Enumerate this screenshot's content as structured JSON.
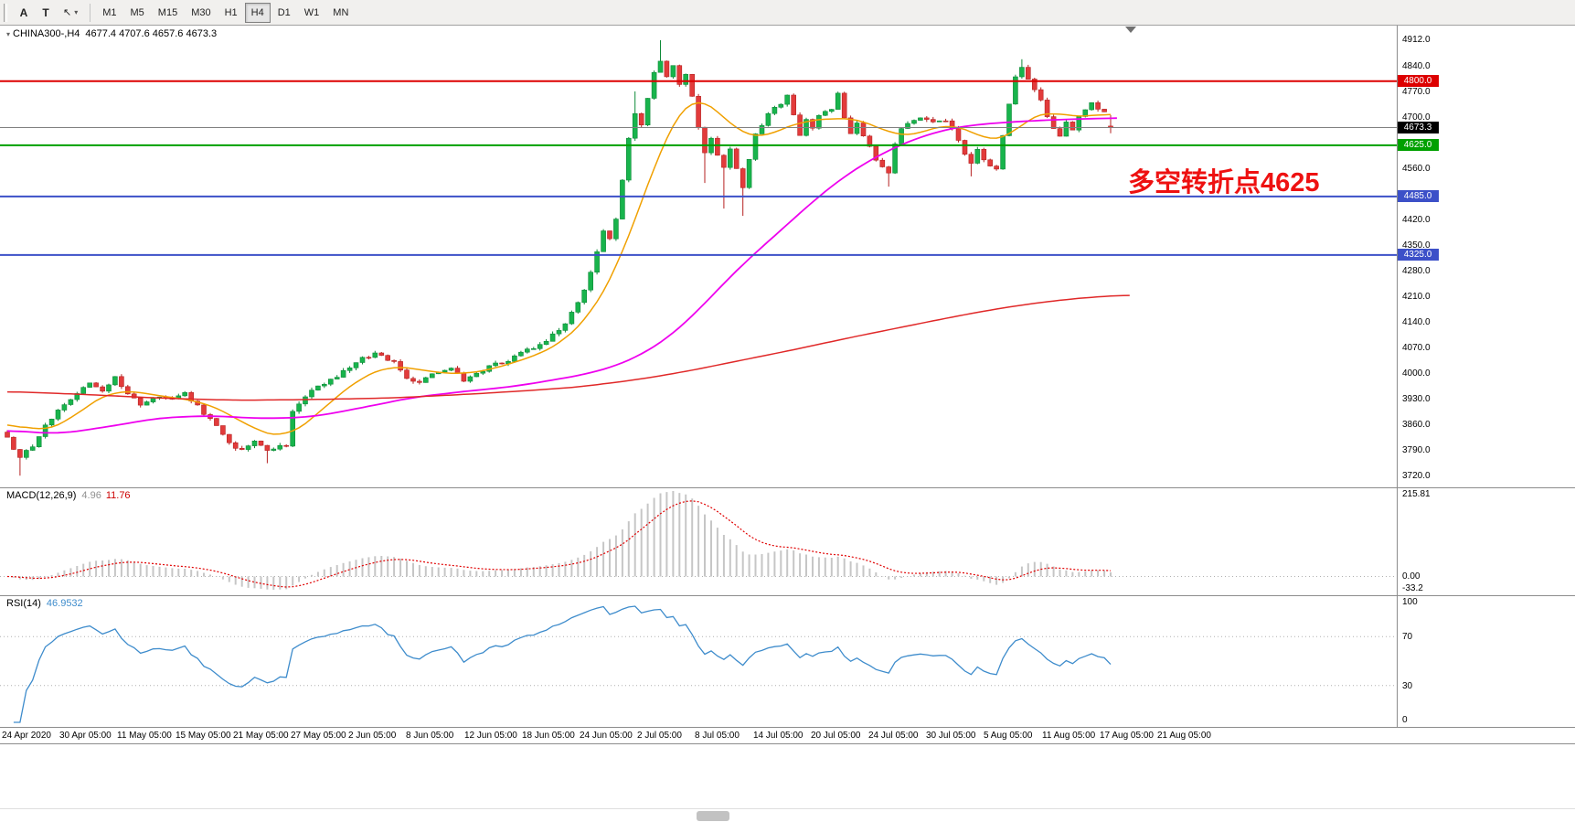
{
  "toolbar": {
    "tool_buttons": [
      {
        "id": "text-tool",
        "label": "A"
      },
      {
        "id": "text-label-tool",
        "label": "T"
      }
    ],
    "cursor_icon": "↖",
    "caret_icon": "▾",
    "timeframes": [
      "M1",
      "M5",
      "M15",
      "M30",
      "H1",
      "H4",
      "D1",
      "W1",
      "MN"
    ],
    "active_timeframe": "H4"
  },
  "chart": {
    "header": {
      "marker_icon": "▾",
      "symbol": "CHINA300-,H4",
      "ohlc": "4677.4 4707.6 4657.6 4673.3"
    },
    "annotation": {
      "text": "多空转折点4625",
      "color": "#ee1111"
    },
    "y_ticks": [
      "4912.0",
      "4840.0",
      "4770.0",
      "4700.0",
      "4560.0",
      "4420.0",
      "4350.0",
      "4280.0",
      "4210.0",
      "4140.0",
      "4070.0",
      "4000.0",
      "3930.0",
      "3860.0",
      "3790.0",
      "3720.0"
    ],
    "hlines": [
      {
        "price": 4800.0,
        "label": "4800.0",
        "color": "#dd0000",
        "badge": "#dd0000",
        "width": 2
      },
      {
        "price": 4673.3,
        "label": "4673.3",
        "color": "#808080",
        "badge": "#000000",
        "width": 1
      },
      {
        "price": 4625.0,
        "label": "4625.0",
        "color": "#00a000",
        "badge": "#00a000",
        "width": 2
      },
      {
        "price": 4485.0,
        "label": "4485.0",
        "color": "#3c50c8",
        "badge": "#3c50c8",
        "width": 2
      },
      {
        "price": 4325.0,
        "label": "4325.0",
        "color": "#3c50c8",
        "badge": "#3c50c8",
        "width": 2
      }
    ],
    "x_labels": [
      "24 Apr 2020",
      "30 Apr 05:00",
      "11 May 05:00",
      "15 May 05:00",
      "21 May 05:00",
      "27 May 05:00",
      "2 Jun 05:00",
      "8 Jun 05:00",
      "12 Jun 05:00",
      "18 Jun 05:00",
      "24 Jun 05:00",
      "2 Jul 05:00",
      "8 Jul 05:00",
      "14 Jul 05:00",
      "20 Jul 05:00",
      "24 Jul 05:00",
      "30 Jul 05:00",
      "5 Aug 05:00",
      "11 Aug 05:00",
      "17 Aug 05:00",
      "21 Aug 05:00"
    ]
  },
  "macd": {
    "name": "MACD(12,26,9)",
    "values": [
      "4.96",
      "11.76"
    ],
    "axis": {
      "max": "215.81",
      "zero": "0.00",
      "min": "-33.2"
    }
  },
  "rsi": {
    "name": "RSI(14)",
    "value": "46.9532",
    "axis": [
      "100",
      "70",
      "30",
      "0"
    ],
    "levels": [
      70,
      30
    ]
  },
  "chart_data": {
    "type": "candlestick",
    "symbol": "CHINA300",
    "timeframe": "H4",
    "bars": 175,
    "seed": 20200824,
    "noise": 6,
    "wick": 7,
    "price_range": [
      3690,
      4952
    ],
    "last_bar": {
      "open": 4677.4,
      "high": 4707.6,
      "low": 4657.6,
      "close": 4673.3
    },
    "horizontal_levels": [
      4800.0,
      4673.3,
      4625.0,
      4485.0,
      4325.0
    ],
    "close_waypoints": [
      [
        0,
        3828
      ],
      [
        2,
        3768
      ],
      [
        4,
        3806
      ],
      [
        7,
        3882
      ],
      [
        9,
        3912
      ],
      [
        11,
        3952
      ],
      [
        13,
        3978
      ],
      [
        15,
        3958
      ],
      [
        17,
        3988
      ],
      [
        19,
        3945
      ],
      [
        21,
        3912
      ],
      [
        23,
        3936
      ],
      [
        26,
        3928
      ],
      [
        28,
        3948
      ],
      [
        30,
        3912
      ],
      [
        32,
        3878
      ],
      [
        35,
        3816
      ],
      [
        37,
        3788
      ],
      [
        39,
        3812
      ],
      [
        41,
        3792
      ],
      [
        44,
        3803
      ],
      [
        45,
        3898
      ],
      [
        47,
        3938
      ],
      [
        49,
        3962
      ],
      [
        51,
        3985
      ],
      [
        52,
        3996
      ],
      [
        54,
        4018
      ],
      [
        56,
        4042
      ],
      [
        58,
        4056
      ],
      [
        61,
        4028
      ],
      [
        63,
        3988
      ],
      [
        65,
        3976
      ],
      [
        67,
        4006
      ],
      [
        70,
        4012
      ],
      [
        72,
        3984
      ],
      [
        74,
        4002
      ],
      [
        76,
        4018
      ],
      [
        78,
        4032
      ],
      [
        80,
        4048
      ],
      [
        82,
        4064
      ],
      [
        84,
        4080
      ],
      [
        87,
        4116
      ],
      [
        89,
        4168
      ],
      [
        91,
        4228
      ],
      [
        92,
        4272
      ],
      [
        93,
        4334
      ],
      [
        94,
        4396
      ],
      [
        95,
        4372
      ],
      [
        96,
        4422
      ],
      [
        97,
        4532
      ],
      [
        98,
        4642
      ],
      [
        99,
        4706
      ],
      [
        100,
        4682
      ],
      [
        101,
        4756
      ],
      [
        102,
        4822
      ],
      [
        103,
        4856
      ],
      [
        104,
        4812
      ],
      [
        105,
        4842
      ],
      [
        106,
        4796
      ],
      [
        107,
        4824
      ],
      [
        108,
        4762
      ],
      [
        109,
        4674
      ],
      [
        110,
        4600
      ],
      [
        111,
        4642
      ],
      [
        112,
        4602
      ],
      [
        113,
        4564
      ],
      [
        114,
        4616
      ],
      [
        115,
        4560
      ],
      [
        116,
        4504
      ],
      [
        117,
        4590
      ],
      [
        118,
        4650
      ],
      [
        119,
        4684
      ],
      [
        120,
        4714
      ],
      [
        122,
        4740
      ],
      [
        123,
        4768
      ],
      [
        124,
        4702
      ],
      [
        125,
        4654
      ],
      [
        126,
        4690
      ],
      [
        127,
        4668
      ],
      [
        128,
        4704
      ],
      [
        130,
        4724
      ],
      [
        131,
        4762
      ],
      [
        132,
        4694
      ],
      [
        133,
        4654
      ],
      [
        134,
        4690
      ],
      [
        135,
        4656
      ],
      [
        136,
        4624
      ],
      [
        137,
        4582
      ],
      [
        139,
        4554
      ],
      [
        140,
        4626
      ],
      [
        141,
        4666
      ],
      [
        142,
        4690
      ],
      [
        144,
        4704
      ],
      [
        146,
        4684
      ],
      [
        148,
        4696
      ],
      [
        149,
        4668
      ],
      [
        150,
        4636
      ],
      [
        151,
        4602
      ],
      [
        152,
        4572
      ],
      [
        153,
        4616
      ],
      [
        154,
        4582
      ],
      [
        156,
        4564
      ],
      [
        157,
        4646
      ],
      [
        158,
        4740
      ],
      [
        159,
        4814
      ],
      [
        160,
        4842
      ],
      [
        161,
        4810
      ],
      [
        162,
        4776
      ],
      [
        163,
        4744
      ],
      [
        164,
        4702
      ],
      [
        165,
        4674
      ],
      [
        166,
        4650
      ],
      [
        167,
        4690
      ],
      [
        168,
        4666
      ],
      [
        169,
        4704
      ],
      [
        170,
        4720
      ],
      [
        171,
        4736
      ],
      [
        172,
        4726
      ],
      [
        173,
        4712
      ],
      [
        174,
        4673.3
      ]
    ],
    "wick_overrides": [
      {
        "i": 2,
        "low": 3722
      },
      {
        "i": 41,
        "low": 3756
      },
      {
        "i": 99,
        "high": 4772
      },
      {
        "i": 103,
        "high": 4912
      },
      {
        "i": 110,
        "low": 4522
      },
      {
        "i": 113,
        "low": 4452
      },
      {
        "i": 116,
        "low": 4432
      },
      {
        "i": 139,
        "low": 4512
      },
      {
        "i": 152,
        "low": 4540
      },
      {
        "i": 160,
        "high": 4860
      },
      {
        "i": 174,
        "high": 4707.6,
        "low": 4657.6
      }
    ],
    "ma_lines": [
      {
        "name": "ma-fast-line",
        "color": "#f0a000",
        "width": 1.5,
        "waypoints": [
          [
            0,
            3868
          ],
          [
            5,
            3842
          ],
          [
            9,
            3862
          ],
          [
            13,
            3920
          ],
          [
            17,
            3956
          ],
          [
            21,
            3950
          ],
          [
            26,
            3934
          ],
          [
            30,
            3928
          ],
          [
            35,
            3892
          ],
          [
            39,
            3846
          ],
          [
            44,
            3824
          ],
          [
            48,
            3876
          ],
          [
            52,
            3940
          ],
          [
            56,
            3992
          ],
          [
            60,
            4022
          ],
          [
            64,
            4016
          ],
          [
            68,
            4002
          ],
          [
            72,
            4000
          ],
          [
            76,
            4010
          ],
          [
            80,
            4032
          ],
          [
            84,
            4054
          ],
          [
            88,
            4092
          ],
          [
            92,
            4162
          ],
          [
            96,
            4282
          ],
          [
            99,
            4422
          ],
          [
            102,
            4566
          ],
          [
            104,
            4654
          ],
          [
            106,
            4722
          ],
          [
            108,
            4762
          ],
          [
            110,
            4752
          ],
          [
            113,
            4700
          ],
          [
            116,
            4652
          ],
          [
            119,
            4642
          ],
          [
            122,
            4668
          ],
          [
            125,
            4692
          ],
          [
            128,
            4692
          ],
          [
            131,
            4702
          ],
          [
            134,
            4696
          ],
          [
            137,
            4680
          ],
          [
            140,
            4648
          ],
          [
            143,
            4652
          ],
          [
            146,
            4672
          ],
          [
            149,
            4686
          ],
          [
            152,
            4664
          ],
          [
            155,
            4632
          ],
          [
            158,
            4644
          ],
          [
            161,
            4702
          ],
          [
            164,
            4722
          ],
          [
            167,
            4702
          ],
          [
            170,
            4704
          ],
          [
            174,
            4712
          ]
        ]
      },
      {
        "name": "ma-mid-line",
        "color": "#ee00ee",
        "width": 1.8,
        "waypoints": [
          [
            0,
            3846
          ],
          [
            8,
            3836
          ],
          [
            16,
            3856
          ],
          [
            24,
            3880
          ],
          [
            32,
            3886
          ],
          [
            40,
            3878
          ],
          [
            48,
            3882
          ],
          [
            56,
            3908
          ],
          [
            64,
            3936
          ],
          [
            72,
            3952
          ],
          [
            80,
            3966
          ],
          [
            87,
            3986
          ],
          [
            92,
            4002
          ],
          [
            96,
            4022
          ],
          [
            100,
            4052
          ],
          [
            104,
            4096
          ],
          [
            108,
            4156
          ],
          [
            112,
            4230
          ],
          [
            116,
            4300
          ],
          [
            120,
            4362
          ],
          [
            124,
            4424
          ],
          [
            128,
            4486
          ],
          [
            132,
            4540
          ],
          [
            136,
            4584
          ],
          [
            140,
            4620
          ],
          [
            144,
            4648
          ],
          [
            148,
            4668
          ],
          [
            152,
            4680
          ],
          [
            156,
            4686
          ],
          [
            160,
            4690
          ],
          [
            164,
            4694
          ],
          [
            168,
            4696
          ],
          [
            172,
            4698
          ],
          [
            175,
            4700
          ]
        ]
      },
      {
        "name": "ma-slow-line",
        "color": "#e02828",
        "width": 1.5,
        "waypoints": [
          [
            0,
            3952
          ],
          [
            12,
            3944
          ],
          [
            24,
            3934
          ],
          [
            36,
            3928
          ],
          [
            48,
            3930
          ],
          [
            60,
            3934
          ],
          [
            70,
            3942
          ],
          [
            80,
            3952
          ],
          [
            90,
            3964
          ],
          [
            100,
            3986
          ],
          [
            108,
            4010
          ],
          [
            116,
            4038
          ],
          [
            124,
            4066
          ],
          [
            132,
            4096
          ],
          [
            140,
            4124
          ],
          [
            148,
            4152
          ],
          [
            156,
            4178
          ],
          [
            164,
            4198
          ],
          [
            171,
            4210
          ],
          [
            177,
            4216
          ]
        ]
      }
    ],
    "indicators": {
      "macd": {
        "fast": 12,
        "slow": 26,
        "signal": 9,
        "values": [
          4.96,
          11.76
        ]
      },
      "rsi": {
        "period": 14,
        "value": 46.9532
      }
    },
    "colors": {
      "up": "#18b44c",
      "up_stroke": "#0e8a38",
      "down": "#e23b3b",
      "down_stroke": "#b62222",
      "macd_hist": "#c6c6c6",
      "macd_signal": "#e00000",
      "rsi": "#3e8ccc"
    }
  }
}
